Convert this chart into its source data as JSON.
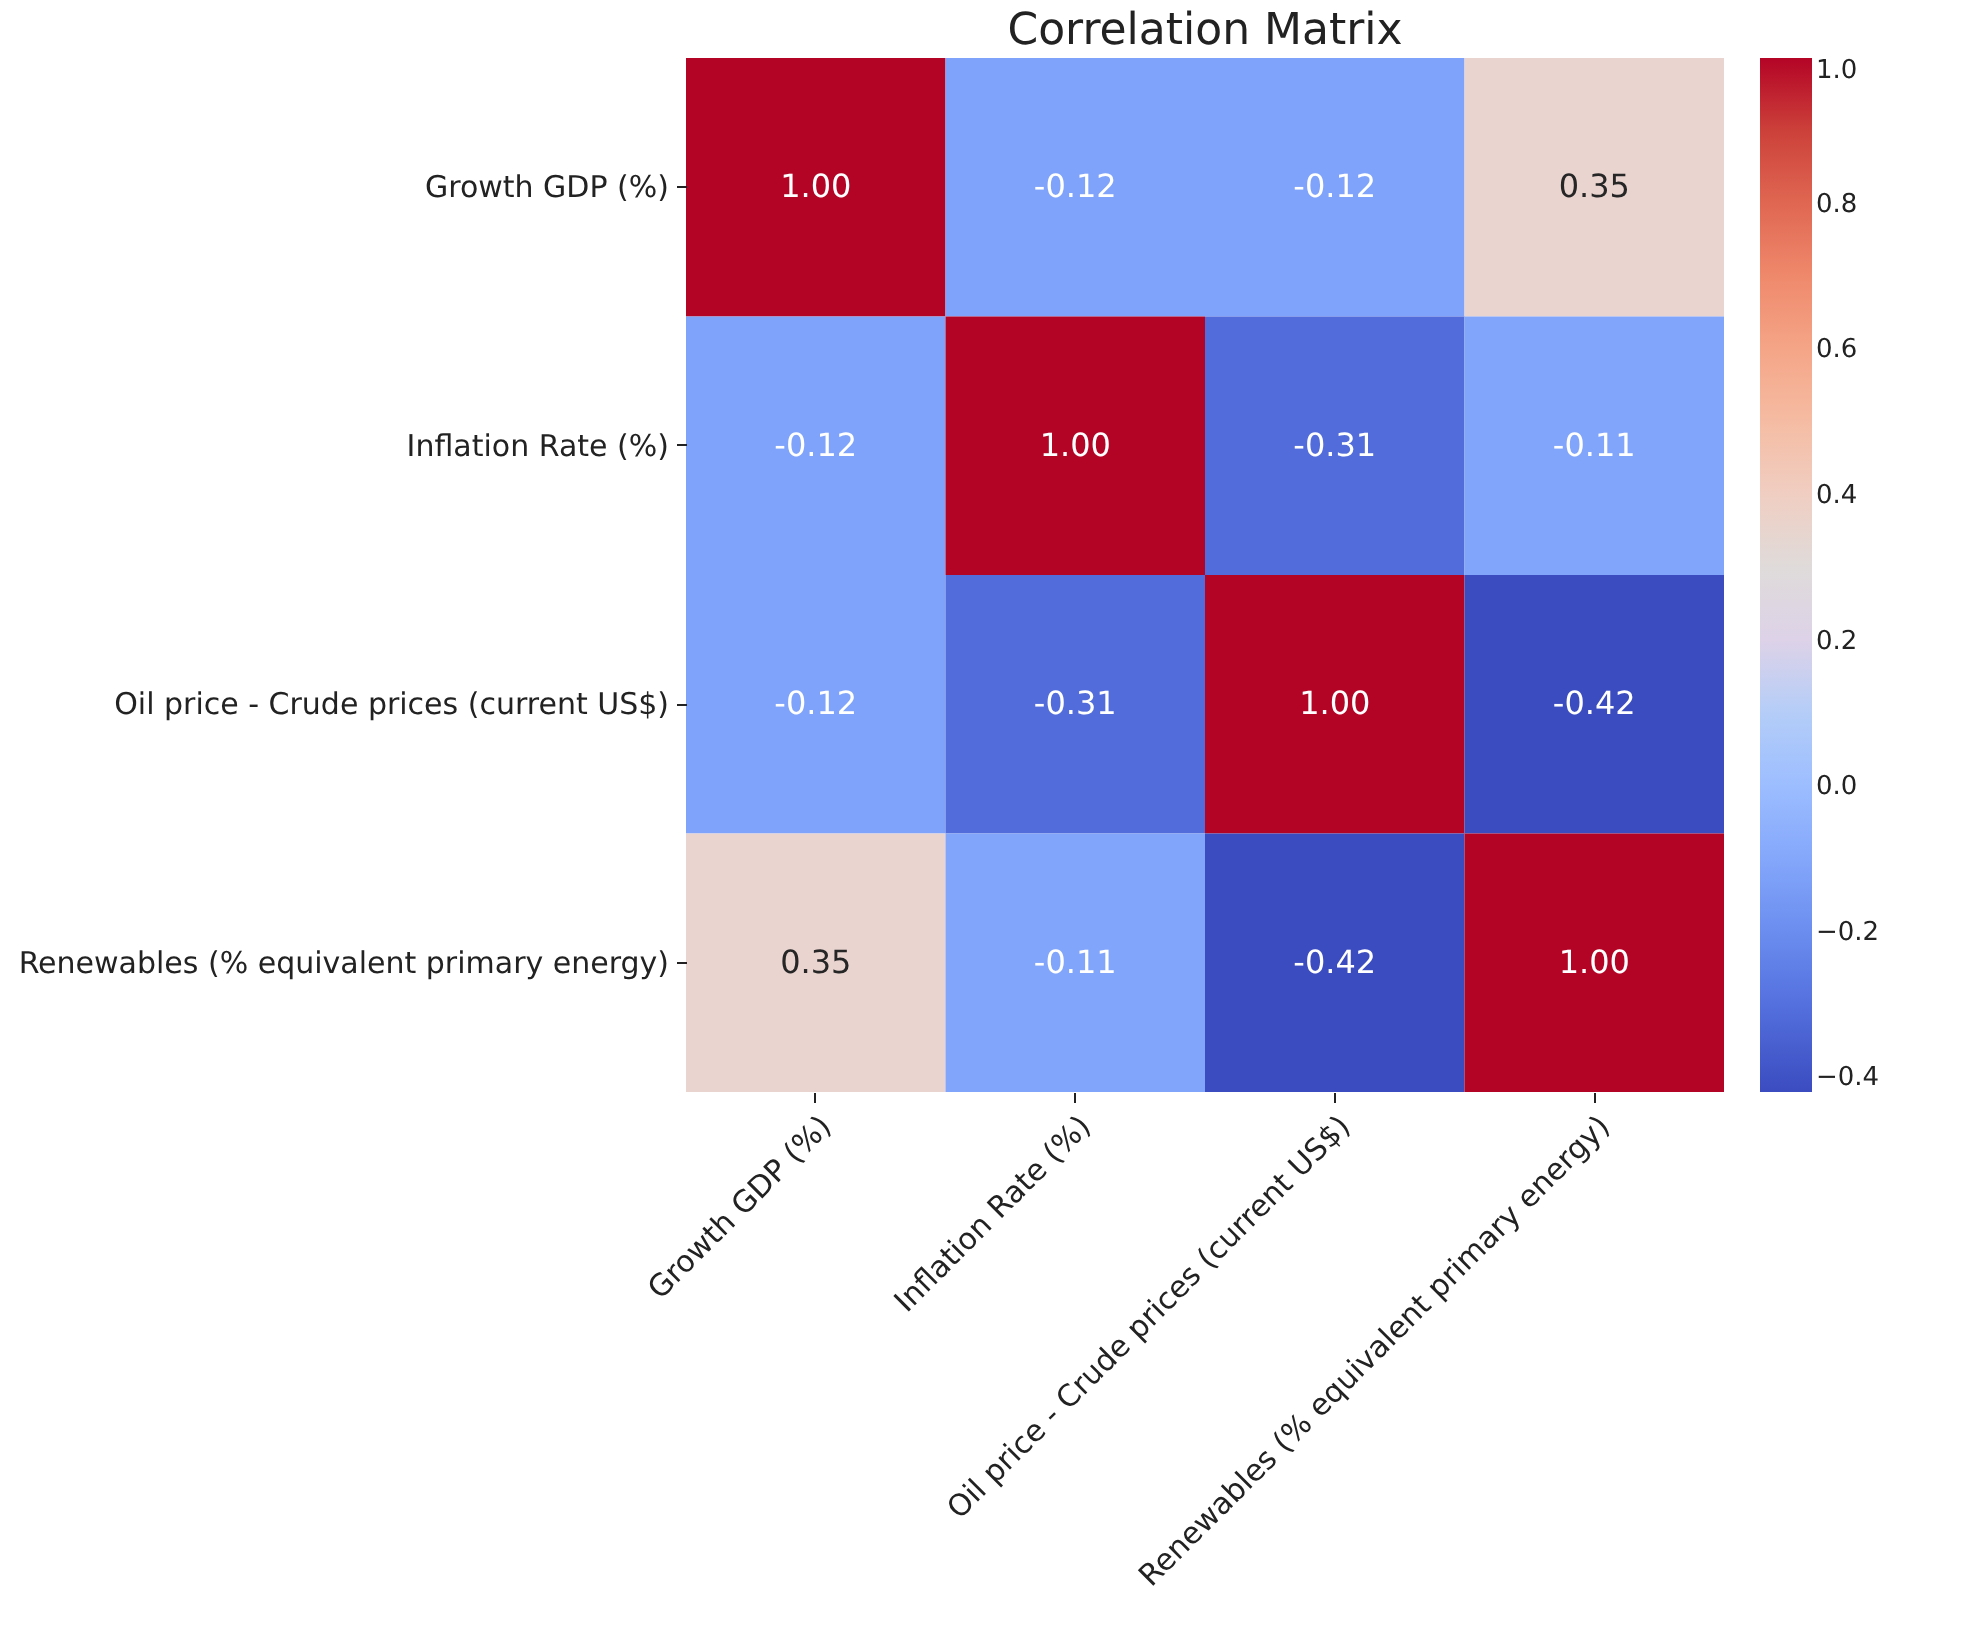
{
  "chart_data": {
    "type": "heatmap",
    "title": "Correlation Matrix",
    "categories": [
      "Growth GDP (%)",
      "Inflation Rate (%)",
      "Oil price - Crude prices (current US$)",
      "Renewables (% equivalent primary energy)"
    ],
    "y_categories": [
      "Growth GDP (%)",
      "Inflation Rate (%)",
      "Oil price - Crude prices (current US$)",
      "Renewables (% equivalent primary energy)"
    ],
    "cells": [
      [
        1.0,
        -0.12,
        -0.12,
        0.35
      ],
      [
        -0.12,
        1.0,
        -0.31,
        -0.11
      ],
      [
        -0.12,
        -0.31,
        1.0,
        -0.42
      ],
      [
        0.35,
        -0.11,
        -0.42,
        1.0
      ]
    ],
    "cell_labels": [
      [
        "1.00",
        "-0.12",
        "-0.12",
        "0.35"
      ],
      [
        "-0.12",
        "1.00",
        "-0.31",
        "-0.11"
      ],
      [
        "-0.12",
        "-0.31",
        "1.00",
        "-0.42"
      ],
      [
        "0.35",
        "-0.11",
        "-0.42",
        "1.00"
      ]
    ],
    "clim": [
      -0.42,
      1.0
    ],
    "cticks": [
      {
        "value": -0.4,
        "label": "−0.4"
      },
      {
        "value": -0.2,
        "label": "−0.2"
      },
      {
        "value": 0,
        "label": "0.0"
      },
      {
        "value": 0.2,
        "label": "0.2"
      },
      {
        "value": 0.4,
        "label": "0.4"
      },
      {
        "value": 0.6,
        "label": "0.6"
      },
      {
        "value": 0.8,
        "label": "0.8"
      },
      {
        "value": 1,
        "label": "1.0"
      }
    ]
  }
}
